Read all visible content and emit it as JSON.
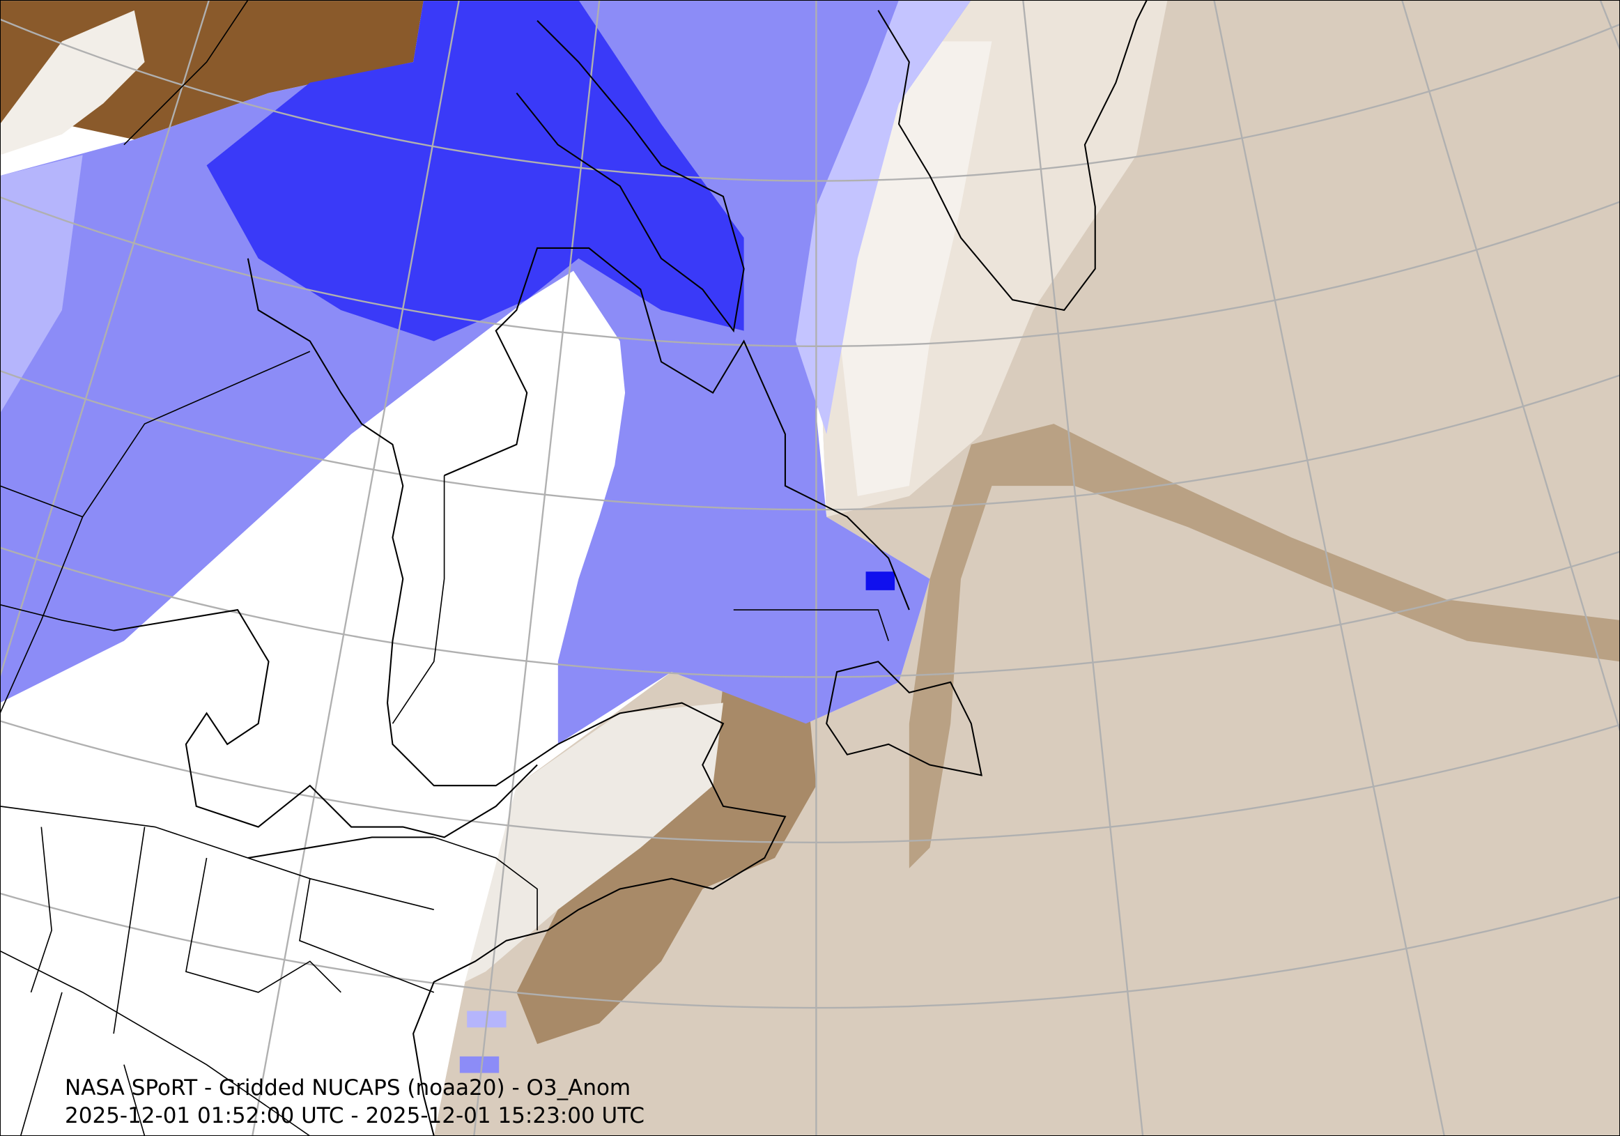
{
  "caption": {
    "title": "NASA SPoRT - Gridded NUCAPS (noaa20) - O3_Anom",
    "time_range": "2025-12-01 01:52:00 UTC - 2025-12-01 15:23:00 UTC"
  },
  "colors": {
    "negative_strong": "#2a2aff",
    "negative_mid": "#6a6af5",
    "negative_light": "#b8b8ff",
    "neutral": "#ffffff",
    "positive_light": "#d8cabb",
    "positive_mid": "#b29878",
    "positive_strong": "#8a5a2b",
    "graticule": "#b0b0b0",
    "coastline": "#000000"
  }
}
